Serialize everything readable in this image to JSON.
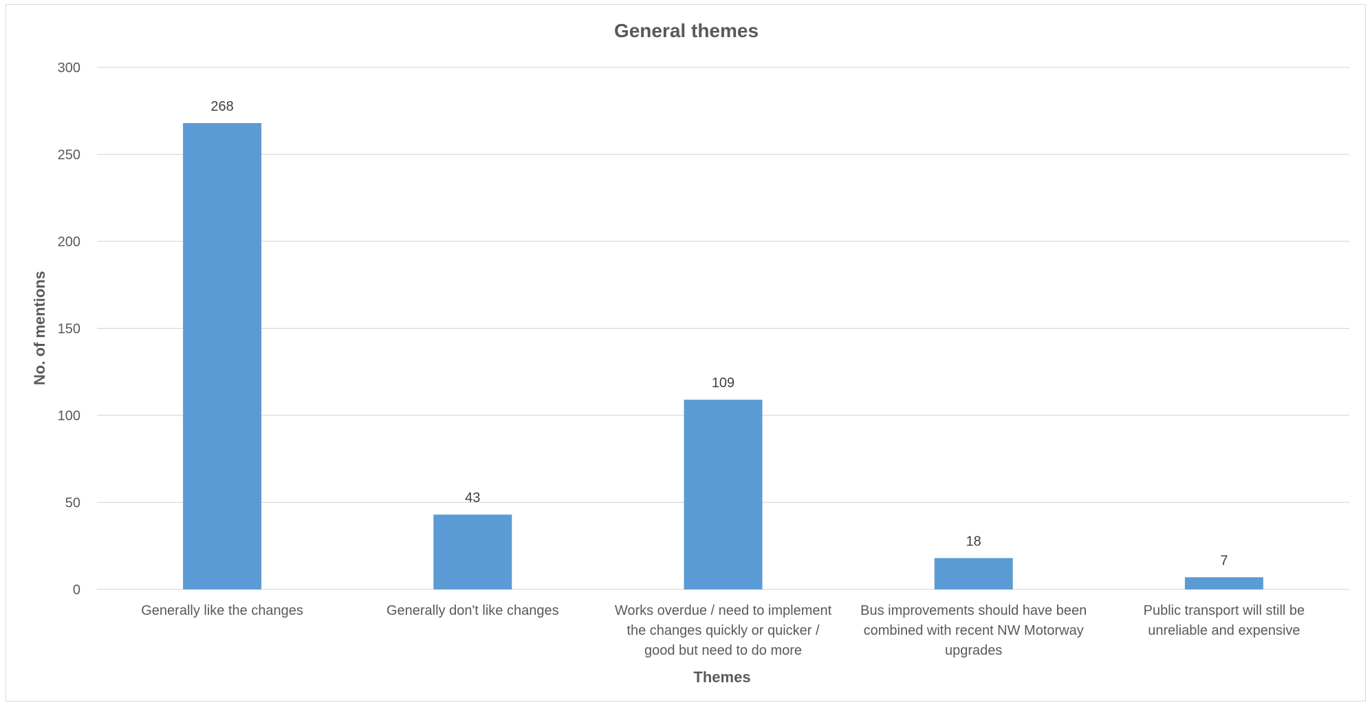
{
  "chart_data": {
    "type": "bar",
    "title": "General themes",
    "xlabel": "Themes",
    "ylabel": "No. of mentions",
    "categories": [
      "Generally like the changes",
      "Generally don't like changes",
      "Works overdue / need to implement the changes quickly or quicker / good but need to do more",
      "Bus improvements should have been combined with recent NW Motorway upgrades",
      "Public transport will still be unreliable and expensive"
    ],
    "category_lines": [
      [
        "Generally like the changes"
      ],
      [
        "Generally don't like changes"
      ],
      [
        "Works overdue / need to implement",
        "the changes quickly or quicker /",
        "good but need to do more"
      ],
      [
        "Bus improvements should have been",
        "combined with recent NW Motorway",
        "upgrades"
      ],
      [
        "Public transport will still be",
        "unreliable and expensive"
      ]
    ],
    "values": [
      268,
      43,
      109,
      18,
      7
    ],
    "ylim": [
      0,
      300
    ],
    "yticks": [
      "0",
      "50",
      "100",
      "150",
      "200",
      "250",
      "300"
    ],
    "grid": true,
    "bar_color": "#5b9bd5",
    "data_labels": true
  }
}
